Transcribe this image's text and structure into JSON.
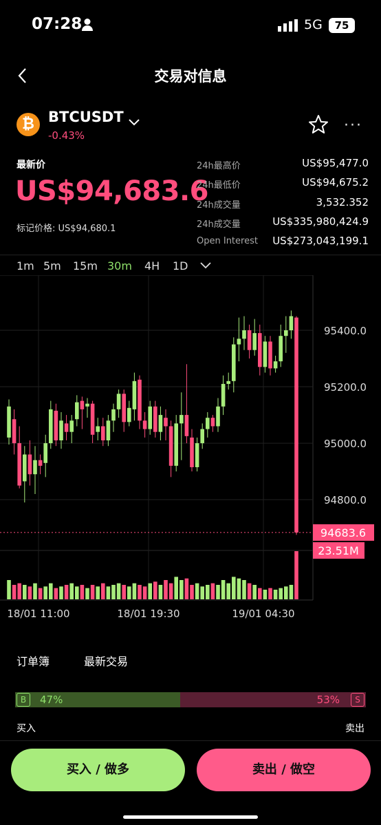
{
  "status": {
    "time": "07:28",
    "network": "5G",
    "battery": "75"
  },
  "header": {
    "title": "交易对信息"
  },
  "pair": {
    "symbol": "BTCUSDT",
    "change": "-0.43%",
    "coin_glyph": "₿"
  },
  "price": {
    "latest_label": "最新价",
    "latest": "US$94,683.6",
    "mark": "标记价格: US$94,680.1"
  },
  "stats": [
    {
      "label": "24h最高价",
      "value": "US$95,477.0"
    },
    {
      "label": "24h最低价",
      "value": "US$94,675.2"
    },
    {
      "label": "24h成交量",
      "value": "3,532.352"
    },
    {
      "label": "24h成交量",
      "value": "US$335,980,424.9"
    },
    {
      "label": "Open Interest",
      "value": "US$273,043,199.1"
    }
  ],
  "timeframes": [
    "1m",
    "5m",
    "15m",
    "30m",
    "4H",
    "1D"
  ],
  "active_timeframe": "30m",
  "colors": {
    "up": "#a8ec7c",
    "down": "#ff4d7d",
    "accent_green": "#8ee06a"
  },
  "chart_data": {
    "type": "candlestick",
    "y_ticks": [
      "95400.0",
      "95200.0",
      "95000.0",
      "94800.0"
    ],
    "ylim": [
      94620,
      95595
    ],
    "x_ticks": [
      "18/01 11:00",
      "18/01 19:30",
      "19/01 04:30"
    ],
    "current_price_label": "94683.6",
    "current_price": 94683.6,
    "volume_label": "23.51M",
    "candles": [
      [
        95020,
        95130,
        94995,
        95155
      ],
      [
        95085,
        95000,
        94960,
        95120
      ],
      [
        95000,
        94850,
        94840,
        95060
      ],
      [
        94865,
        94960,
        94790,
        94990
      ],
      [
        94960,
        94890,
        94850,
        95010
      ],
      [
        94890,
        94940,
        94820,
        94990
      ],
      [
        94940,
        94920,
        94890,
        94960
      ],
      [
        94930,
        95000,
        94880,
        95030
      ],
      [
        95000,
        95120,
        94980,
        95150
      ],
      [
        95115,
        95010,
        94990,
        95140
      ],
      [
        95010,
        95080,
        94980,
        95110
      ],
      [
        95070,
        95040,
        95010,
        95100
      ],
      [
        95040,
        95080,
        95000,
        95100
      ],
      [
        95085,
        95145,
        95060,
        95170
      ],
      [
        95150,
        95120,
        95050,
        95165
      ],
      [
        95130,
        95140,
        95090,
        95160
      ],
      [
        95140,
        95030,
        95000,
        95150
      ],
      [
        95040,
        95060,
        95010,
        95090
      ],
      [
        95060,
        95010,
        94990,
        95090
      ],
      [
        95010,
        95080,
        94990,
        95100
      ],
      [
        95080,
        95120,
        95040,
        95140
      ],
      [
        95120,
        95175,
        95090,
        95190
      ],
      [
        95175,
        95075,
        95040,
        95190
      ],
      [
        95075,
        95125,
        95060,
        95150
      ],
      [
        95120,
        95220,
        95080,
        95250
      ],
      [
        95225,
        95080,
        95050,
        95240
      ],
      [
        95080,
        95050,
        95020,
        95110
      ],
      [
        95050,
        95130,
        95030,
        95150
      ],
      [
        95130,
        95040,
        95020,
        95150
      ],
      [
        95040,
        95100,
        95010,
        95130
      ],
      [
        95090,
        95060,
        95010,
        95120
      ],
      [
        95060,
        94920,
        94880,
        95080
      ],
      [
        94920,
        95070,
        94900,
        95100
      ],
      [
        95070,
        95100,
        94940,
        95180
      ],
      [
        95100,
        95025,
        95000,
        95280
      ],
      [
        95020,
        94915,
        94900,
        95050
      ],
      [
        94915,
        95000,
        94900,
        95020
      ],
      [
        95000,
        95050,
        94980,
        95070
      ],
      [
        95050,
        95090,
        95020,
        95110
      ],
      [
        95090,
        95060,
        95040,
        95100
      ],
      [
        95060,
        95130,
        95040,
        95160
      ],
      [
        95130,
        95210,
        95100,
        95240
      ],
      [
        95210,
        95220,
        95190,
        95250
      ],
      [
        95220,
        95350,
        95180,
        95375
      ],
      [
        95350,
        95370,
        95290,
        95445
      ],
      [
        95370,
        95400,
        95330,
        95450
      ],
      [
        95400,
        95330,
        95300,
        95420
      ],
      [
        95330,
        95390,
        95310,
        95440
      ],
      [
        95390,
        95270,
        95240,
        95420
      ],
      [
        95270,
        95360,
        95250,
        95380
      ],
      [
        95360,
        95265,
        95240,
        95380
      ],
      [
        95265,
        95290,
        95250,
        95310
      ],
      [
        95290,
        95380,
        95270,
        95420
      ],
      [
        95380,
        95400,
        95320,
        95450
      ],
      [
        95400,
        95450,
        95370,
        95470
      ],
      [
        95445,
        94683.6,
        94675.2,
        95450
      ]
    ],
    "volumes": [
      12,
      9,
      10,
      9,
      8,
      10,
      7,
      8,
      10,
      7,
      8,
      9,
      10,
      8,
      9,
      7,
      9,
      8,
      10,
      8,
      9,
      10,
      9,
      8,
      10,
      9,
      8,
      10,
      11,
      9,
      12,
      10,
      14,
      12,
      13,
      9,
      10,
      8,
      9,
      10,
      9,
      12,
      10,
      14,
      13,
      12,
      10,
      9,
      7,
      6,
      7,
      6,
      7,
      8,
      9,
      30
    ]
  },
  "tabs": [
    "订单簿",
    "最新交易"
  ],
  "ratio": {
    "buy_pct": 47,
    "sell_pct": 53,
    "buy_label": "47%",
    "sell_label": "53%",
    "buy_tag": "B",
    "sell_tag": "S"
  },
  "ratio_labels": {
    "buy": "买入",
    "sell": "卖出"
  },
  "actions": {
    "buy": "买入 / 做多",
    "sell": "卖出 / 做空"
  }
}
